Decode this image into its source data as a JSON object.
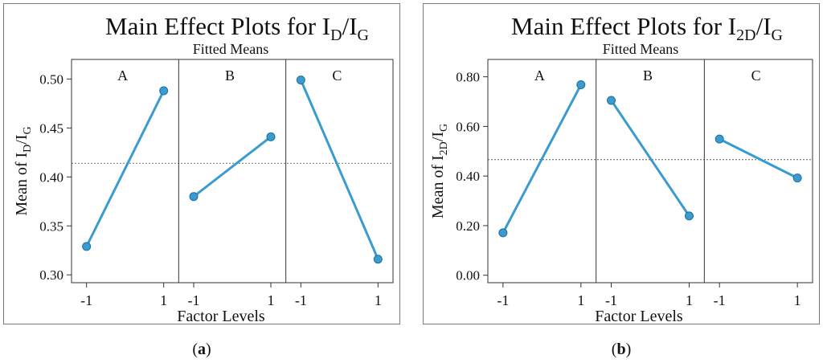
{
  "chart_data": [
    {
      "type": "line",
      "title_main": "Main Effect Plots for I",
      "title_sub1": "D",
      "title_mid": "/I",
      "title_sub2": "G",
      "subtitle": "Fitted Means",
      "xlabel": "Factor Levels",
      "ylabel_main": "Mean of I",
      "ylabel_sub1": "D",
      "ylabel_mid": "/I",
      "ylabel_sub2": "G",
      "ylim": [
        0.292,
        0.52
      ],
      "yticks": [
        0.3,
        0.35,
        0.4,
        0.45,
        0.5
      ],
      "ytick_labels": [
        "0.30",
        "0.35",
        "0.40",
        "0.45",
        "0.50"
      ],
      "xtick_labels": [
        "-1",
        "1"
      ],
      "reference_line": 0.414,
      "grid": false,
      "series_color": "#3a9bd0",
      "factors": [
        {
          "name": "A",
          "x": [
            -1,
            1
          ],
          "values": [
            0.329,
            0.488
          ]
        },
        {
          "name": "B",
          "x": [
            -1,
            1
          ],
          "values": [
            0.38,
            0.441
          ]
        },
        {
          "name": "C",
          "x": [
            -1,
            1
          ],
          "values": [
            0.499,
            0.316
          ]
        }
      ]
    },
    {
      "type": "line",
      "title_main": "Main Effect Plots for I",
      "title_sub1": "2D",
      "title_mid": "/I",
      "title_sub2": "G",
      "subtitle": "Fitted Means",
      "xlabel": "Factor Levels",
      "ylabel_main": "Mean of I",
      "ylabel_sub1": "2D",
      "ylabel_mid": "/I",
      "ylabel_sub2": "G",
      "ylim": [
        -0.03,
        0.87
      ],
      "yticks": [
        0.0,
        0.2,
        0.4,
        0.6,
        0.8
      ],
      "ytick_labels": [
        "0.00",
        "0.20",
        "0.40",
        "0.60",
        "0.80"
      ],
      "xtick_labels": [
        "-1",
        "1"
      ],
      "reference_line": 0.466,
      "grid": false,
      "series_color": "#3a9bd0",
      "factors": [
        {
          "name": "A",
          "x": [
            -1,
            1
          ],
          "values": [
            0.171,
            0.768
          ]
        },
        {
          "name": "B",
          "x": [
            -1,
            1
          ],
          "values": [
            0.705,
            0.239
          ]
        },
        {
          "name": "C",
          "x": [
            -1,
            1
          ],
          "values": [
            0.549,
            0.392
          ]
        }
      ]
    }
  ],
  "captions": {
    "a": "a",
    "b": "b"
  }
}
